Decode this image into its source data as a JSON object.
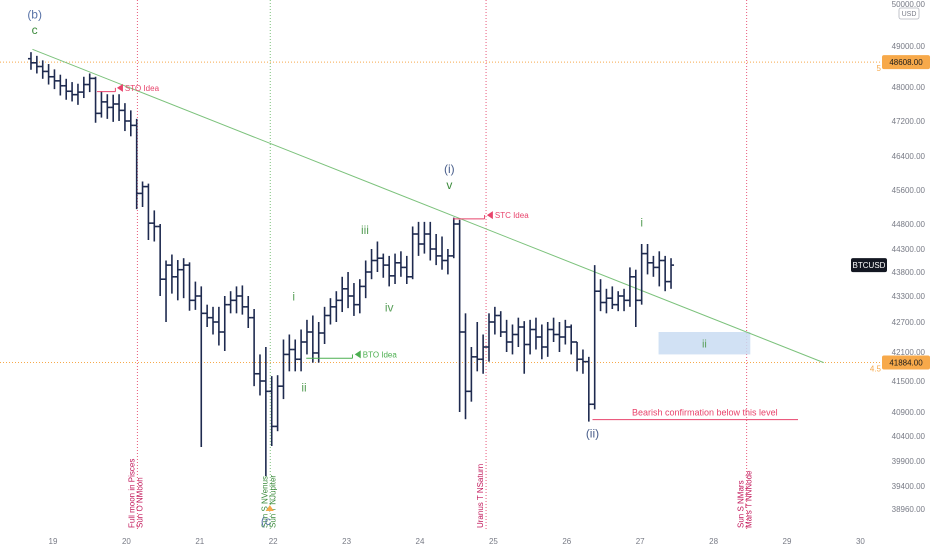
{
  "chart_data": {
    "type": "ohlc",
    "symbol": "BTCUSD",
    "currency": "USD",
    "x_ticks": [
      "19",
      "20",
      "21",
      "22",
      "23",
      "24",
      "25",
      "26",
      "27",
      "28",
      "29",
      "30"
    ],
    "y_ticks": [
      "50000.00",
      "49000.00",
      "48000.00",
      "47200.00",
      "46400.00",
      "45600.00",
      "44800.00",
      "44300.00",
      "43800.00",
      "43300.00",
      "42700.00",
      "42100.00",
      "41500.00",
      "40900.00",
      "40400.00",
      "39900.00",
      "39400.00",
      "38960.00"
    ],
    "ylim": [
      38600,
      50200
    ],
    "last_price_label": "BTCUSD",
    "levels": [
      {
        "price": 48608,
        "label": "48608.00",
        "side_label": "5",
        "color": "#f7a94a"
      },
      {
        "price": 41884,
        "label": "41884.00",
        "side_label": "4.5",
        "color": "#f7a94a"
      }
    ],
    "bars": [
      {
        "x": 18.7,
        "o": 48690,
        "h": 48850,
        "l": 48420,
        "c": 48590
      },
      {
        "x": 18.78,
        "o": 48590,
        "h": 48760,
        "l": 48330,
        "c": 48500
      },
      {
        "x": 18.86,
        "o": 48500,
        "h": 48650,
        "l": 48200,
        "c": 48380
      },
      {
        "x": 18.94,
        "o": 48380,
        "h": 48560,
        "l": 48060,
        "c": 48250
      },
      {
        "x": 19.02,
        "o": 48250,
        "h": 48430,
        "l": 47950,
        "c": 48150
      },
      {
        "x": 19.1,
        "o": 48150,
        "h": 48300,
        "l": 47800,
        "c": 48030
      },
      {
        "x": 19.18,
        "o": 48030,
        "h": 48200,
        "l": 47700,
        "c": 47900
      },
      {
        "x": 19.26,
        "o": 47900,
        "h": 48120,
        "l": 47660,
        "c": 47820
      },
      {
        "x": 19.34,
        "o": 47820,
        "h": 48080,
        "l": 47580,
        "c": 47880
      },
      {
        "x": 19.42,
        "o": 47880,
        "h": 48250,
        "l": 47740,
        "c": 48060
      },
      {
        "x": 19.5,
        "o": 48060,
        "h": 48330,
        "l": 47880,
        "c": 48210
      },
      {
        "x": 19.58,
        "o": 48210,
        "h": 48250,
        "l": 47160,
        "c": 47380
      },
      {
        "x": 19.66,
        "o": 47380,
        "h": 47900,
        "l": 47280,
        "c": 47650
      },
      {
        "x": 19.74,
        "o": 47650,
        "h": 47830,
        "l": 47250,
        "c": 47520
      },
      {
        "x": 19.82,
        "o": 47520,
        "h": 47820,
        "l": 47180,
        "c": 47600
      },
      {
        "x": 19.9,
        "o": 47600,
        "h": 47830,
        "l": 47200,
        "c": 47450
      },
      {
        "x": 19.98,
        "o": 47450,
        "h": 47620,
        "l": 46970,
        "c": 47200
      },
      {
        "x": 20.06,
        "o": 47200,
        "h": 47450,
        "l": 46850,
        "c": 47100
      },
      {
        "x": 20.14,
        "o": 47100,
        "h": 47250,
        "l": 45150,
        "c": 45520
      },
      {
        "x": 20.22,
        "o": 45520,
        "h": 45800,
        "l": 45200,
        "c": 45680
      },
      {
        "x": 20.3,
        "o": 45680,
        "h": 45750,
        "l": 44480,
        "c": 44820
      },
      {
        "x": 20.38,
        "o": 44820,
        "h": 45120,
        "l": 44450,
        "c": 44750
      },
      {
        "x": 20.46,
        "o": 44750,
        "h": 44800,
        "l": 43300,
        "c": 43650
      },
      {
        "x": 20.54,
        "o": 43650,
        "h": 44050,
        "l": 42700,
        "c": 43950
      },
      {
        "x": 20.62,
        "o": 43950,
        "h": 44180,
        "l": 43350,
        "c": 43700
      },
      {
        "x": 20.7,
        "o": 43700,
        "h": 44060,
        "l": 43200,
        "c": 43850
      },
      {
        "x": 20.78,
        "o": 43850,
        "h": 44100,
        "l": 43250,
        "c": 43950
      },
      {
        "x": 20.86,
        "o": 43950,
        "h": 44010,
        "l": 42960,
        "c": 43200
      },
      {
        "x": 20.94,
        "o": 43200,
        "h": 43600,
        "l": 42980,
        "c": 43300
      },
      {
        "x": 21.02,
        "o": 43300,
        "h": 43500,
        "l": 40180,
        "c": 42900
      },
      {
        "x": 21.1,
        "o": 42900,
        "h": 43100,
        "l": 42600,
        "c": 42800
      },
      {
        "x": 21.18,
        "o": 42800,
        "h": 43050,
        "l": 42450,
        "c": 42700
      },
      {
        "x": 21.26,
        "o": 42700,
        "h": 43050,
        "l": 42230,
        "c": 42500
      },
      {
        "x": 21.34,
        "o": 42500,
        "h": 43300,
        "l": 42120,
        "c": 43100
      },
      {
        "x": 21.42,
        "o": 43100,
        "h": 43400,
        "l": 42900,
        "c": 43200
      },
      {
        "x": 21.5,
        "o": 43200,
        "h": 43500,
        "l": 42900,
        "c": 43300
      },
      {
        "x": 21.58,
        "o": 43300,
        "h": 43520,
        "l": 42870,
        "c": 43050
      },
      {
        "x": 21.66,
        "o": 43050,
        "h": 43300,
        "l": 42580,
        "c": 42800
      },
      {
        "x": 21.74,
        "o": 42800,
        "h": 43000,
        "l": 41400,
        "c": 41650
      },
      {
        "x": 21.82,
        "o": 41650,
        "h": 42050,
        "l": 41220,
        "c": 41500
      },
      {
        "x": 21.9,
        "o": 41500,
        "h": 42200,
        "l": 39600,
        "c": 41300
      },
      {
        "x": 21.98,
        "o": 41300,
        "h": 41600,
        "l": 40200,
        "c": 40600
      },
      {
        "x": 22.06,
        "o": 40600,
        "h": 41620,
        "l": 40500,
        "c": 41400
      },
      {
        "x": 22.14,
        "o": 41400,
        "h": 42350,
        "l": 41150,
        "c": 42050
      },
      {
        "x": 22.22,
        "o": 42050,
        "h": 42450,
        "l": 41700,
        "c": 42150
      },
      {
        "x": 22.3,
        "o": 42150,
        "h": 42350,
        "l": 41700,
        "c": 41950
      },
      {
        "x": 22.38,
        "o": 41950,
        "h": 42550,
        "l": 41700,
        "c": 42300
      },
      {
        "x": 22.46,
        "o": 42300,
        "h": 42750,
        "l": 42050,
        "c": 42500
      },
      {
        "x": 22.54,
        "o": 42500,
        "h": 42850,
        "l": 41880,
        "c": 42080
      },
      {
        "x": 22.62,
        "o": 42080,
        "h": 42700,
        "l": 41880,
        "c": 42480
      },
      {
        "x": 22.7,
        "o": 42480,
        "h": 43050,
        "l": 42260,
        "c": 42850
      },
      {
        "x": 22.78,
        "o": 42850,
        "h": 43250,
        "l": 42650,
        "c": 43050
      },
      {
        "x": 22.86,
        "o": 43050,
        "h": 43400,
        "l": 42700,
        "c": 43200
      },
      {
        "x": 22.94,
        "o": 43200,
        "h": 43700,
        "l": 42930,
        "c": 43450
      },
      {
        "x": 23.02,
        "o": 43450,
        "h": 43800,
        "l": 43020,
        "c": 43300
      },
      {
        "x": 23.1,
        "o": 43300,
        "h": 43570,
        "l": 42840,
        "c": 43100
      },
      {
        "x": 23.18,
        "o": 43100,
        "h": 43650,
        "l": 42900,
        "c": 43500
      },
      {
        "x": 23.26,
        "o": 43500,
        "h": 44050,
        "l": 43250,
        "c": 43800
      },
      {
        "x": 23.34,
        "o": 43800,
        "h": 44300,
        "l": 43650,
        "c": 44050
      },
      {
        "x": 23.42,
        "o": 44050,
        "h": 44450,
        "l": 43800,
        "c": 44100
      },
      {
        "x": 23.5,
        "o": 44100,
        "h": 44200,
        "l": 43680,
        "c": 43950
      },
      {
        "x": 23.58,
        "o": 43950,
        "h": 44150,
        "l": 43500,
        "c": 43720
      },
      {
        "x": 23.66,
        "o": 43720,
        "h": 44200,
        "l": 43550,
        "c": 44000
      },
      {
        "x": 23.74,
        "o": 44000,
        "h": 44250,
        "l": 43700,
        "c": 43900
      },
      {
        "x": 23.82,
        "o": 43900,
        "h": 44150,
        "l": 43550,
        "c": 43700
      },
      {
        "x": 23.9,
        "o": 43700,
        "h": 44750,
        "l": 43650,
        "c": 44600
      },
      {
        "x": 23.98,
        "o": 44600,
        "h": 44850,
        "l": 44150,
        "c": 44400
      },
      {
        "x": 24.06,
        "o": 44400,
        "h": 44850,
        "l": 44200,
        "c": 44600
      },
      {
        "x": 24.14,
        "o": 44600,
        "h": 44850,
        "l": 44050,
        "c": 44300
      },
      {
        "x": 24.22,
        "o": 44300,
        "h": 44600,
        "l": 43950,
        "c": 44150
      },
      {
        "x": 24.3,
        "o": 44150,
        "h": 44550,
        "l": 43850,
        "c": 44050
      },
      {
        "x": 24.38,
        "o": 44050,
        "h": 44300,
        "l": 43750,
        "c": 44150
      },
      {
        "x": 24.46,
        "o": 44150,
        "h": 44950,
        "l": 44100,
        "c": 44800
      },
      {
        "x": 24.54,
        "o": 44800,
        "h": 44900,
        "l": 40900,
        "c": 42500
      },
      {
        "x": 24.62,
        "o": 42500,
        "h": 42900,
        "l": 40750,
        "c": 41300
      },
      {
        "x": 24.7,
        "o": 41300,
        "h": 42200,
        "l": 41100,
        "c": 42000
      },
      {
        "x": 24.78,
        "o": 42000,
        "h": 42700,
        "l": 41700,
        "c": 41950
      },
      {
        "x": 24.86,
        "o": 41950,
        "h": 42450,
        "l": 41650,
        "c": 42200
      },
      {
        "x": 24.94,
        "o": 42200,
        "h": 42900,
        "l": 41900,
        "c": 42700
      },
      {
        "x": 25.02,
        "o": 42700,
        "h": 43050,
        "l": 42450,
        "c": 42850
      },
      {
        "x": 25.1,
        "o": 42850,
        "h": 42950,
        "l": 42400,
        "c": 42500
      },
      {
        "x": 25.18,
        "o": 42500,
        "h": 42750,
        "l": 42100,
        "c": 42300
      },
      {
        "x": 25.26,
        "o": 42300,
        "h": 42650,
        "l": 42050,
        "c": 42450
      },
      {
        "x": 25.34,
        "o": 42450,
        "h": 42800,
        "l": 42200,
        "c": 42600
      },
      {
        "x": 25.42,
        "o": 42600,
        "h": 42720,
        "l": 41650,
        "c": 42250
      },
      {
        "x": 25.5,
        "o": 42250,
        "h": 42750,
        "l": 42050,
        "c": 42550
      },
      {
        "x": 25.58,
        "o": 42550,
        "h": 42800,
        "l": 42150,
        "c": 42400
      },
      {
        "x": 25.66,
        "o": 42400,
        "h": 42650,
        "l": 41950,
        "c": 42200
      },
      {
        "x": 25.74,
        "o": 42200,
        "h": 42700,
        "l": 42000,
        "c": 42550
      },
      {
        "x": 25.82,
        "o": 42550,
        "h": 42800,
        "l": 42300,
        "c": 42450
      },
      {
        "x": 25.9,
        "o": 42450,
        "h": 42700,
        "l": 42100,
        "c": 42400
      },
      {
        "x": 25.98,
        "o": 42400,
        "h": 42750,
        "l": 42250,
        "c": 42600
      },
      {
        "x": 26.06,
        "o": 42600,
        "h": 42650,
        "l": 42050,
        "c": 42300
      },
      {
        "x": 26.14,
        "o": 42300,
        "h": 42300,
        "l": 41700,
        "c": 41950
      },
      {
        "x": 26.22,
        "o": 41950,
        "h": 42150,
        "l": 41650,
        "c": 41900
      },
      {
        "x": 26.3,
        "o": 41900,
        "h": 42000,
        "l": 40700,
        "c": 41050
      },
      {
        "x": 26.38,
        "o": 41050,
        "h": 43950,
        "l": 40950,
        "c": 43400
      },
      {
        "x": 26.46,
        "o": 43400,
        "h": 43650,
        "l": 42950,
        "c": 43150
      },
      {
        "x": 26.54,
        "o": 43150,
        "h": 43450,
        "l": 42900,
        "c": 43250
      },
      {
        "x": 26.62,
        "o": 43250,
        "h": 43500,
        "l": 43000,
        "c": 43100
      },
      {
        "x": 26.7,
        "o": 43100,
        "h": 43400,
        "l": 42950,
        "c": 43300
      },
      {
        "x": 26.78,
        "o": 43300,
        "h": 43450,
        "l": 42950,
        "c": 43200
      },
      {
        "x": 26.86,
        "o": 43200,
        "h": 43900,
        "l": 43050,
        "c": 43700
      },
      {
        "x": 26.94,
        "o": 43700,
        "h": 43850,
        "l": 42600,
        "c": 43200
      },
      {
        "x": 27.02,
        "o": 43200,
        "h": 44400,
        "l": 43100,
        "c": 44200
      },
      {
        "x": 27.1,
        "o": 44200,
        "h": 44400,
        "l": 43750,
        "c": 44000
      },
      {
        "x": 27.18,
        "o": 44000,
        "h": 44150,
        "l": 43700,
        "c": 43900
      },
      {
        "x": 27.26,
        "o": 43900,
        "h": 44250,
        "l": 43500,
        "c": 44050
      },
      {
        "x": 27.34,
        "o": 44050,
        "h": 44150,
        "l": 43400,
        "c": 43600
      },
      {
        "x": 27.42,
        "o": 43600,
        "h": 44100,
        "l": 43450,
        "c": 43950
      }
    ],
    "trendline": {
      "x1": 18.72,
      "y1": 48920,
      "x2": 29.5,
      "y2": 41880,
      "color": "#7cc27c"
    },
    "vlines": [
      {
        "x": 20.15,
        "color": "#e8597b",
        "label": "Full moon in Pisces\nSun O NMoon",
        "label_color": "#c2185b"
      },
      {
        "x": 21.96,
        "color": "#7cc27c",
        "label": "Sun S NVenus\nSun T NJupiter",
        "label_color": "#3a8a3a"
      },
      {
        "x": 24.9,
        "color": "#e8597b",
        "label": "Uranus T NSaturn",
        "label_color": "#c2185b"
      },
      {
        "x": 28.45,
        "color": "#e8597b",
        "label": "Sun S NMars\nMars T NNNode",
        "label_color": "#c2185b"
      }
    ],
    "annotations": [
      {
        "text": "(b)",
        "x": 18.75,
        "y": 49650,
        "color": "#5a74a8",
        "size": 12
      },
      {
        "text": "c",
        "x": 18.75,
        "y": 49280,
        "color": "#3a8a3a",
        "size": 12
      },
      {
        "text": "(i)",
        "x": 24.4,
        "y": 46000,
        "color": "#4a5f8c",
        "size": 12
      },
      {
        "text": "v",
        "x": 24.4,
        "y": 45620,
        "color": "#3a8a3a",
        "size": 12
      },
      {
        "text": "iii",
        "x": 23.25,
        "y": 44600,
        "color": "#5aa05a",
        "size": 12
      },
      {
        "text": "iv",
        "x": 23.58,
        "y": 42940,
        "color": "#5aa05a",
        "size": 12
      },
      {
        "text": "i",
        "x": 22.28,
        "y": 43200,
        "color": "#5aa05a",
        "size": 12
      },
      {
        "text": "ii",
        "x": 22.42,
        "y": 41300,
        "color": "#5aa05a",
        "size": 12
      },
      {
        "text": "i",
        "x": 27.02,
        "y": 44750,
        "color": "#5aa05a",
        "size": 12
      },
      {
        "text": "(ii)",
        "x": 26.35,
        "y": 40370,
        "color": "#4a5f8c",
        "size": 12
      },
      {
        "text": "(c",
        "x": 21.9,
        "y": 38650,
        "color": "#5a74a8",
        "size": 12
      }
    ],
    "trade_marks": [
      {
        "text": "STO Idea",
        "x_from": 19.6,
        "x_to": 19.85,
        "price": 47890,
        "arrow_y": 47980,
        "label_x": 19.98,
        "color": "#e8436b"
      },
      {
        "text": "STC Idea",
        "x_from": 24.45,
        "x_to": 24.88,
        "price": 44920,
        "arrow_y": 45010,
        "label_x": 25.02,
        "color": "#e8436b"
      },
      {
        "text": "BTO Idea",
        "x_from": 22.45,
        "x_to": 23.08,
        "price": 41970,
        "arrow_y": 42050,
        "label_x": 23.22,
        "color": "#4caf50"
      }
    ],
    "bearish_line": {
      "text": "Bearish confirmation below this level",
      "x_from": 26.35,
      "x_to": 29.15,
      "price": 40740,
      "color": "#e8436b"
    },
    "zone": {
      "x_from": 27.25,
      "x_to": 28.5,
      "y_from": 42050,
      "y_to": 42500,
      "label": "ii",
      "color": "#c9dcf2",
      "label_color": "#5aa05a"
    }
  }
}
